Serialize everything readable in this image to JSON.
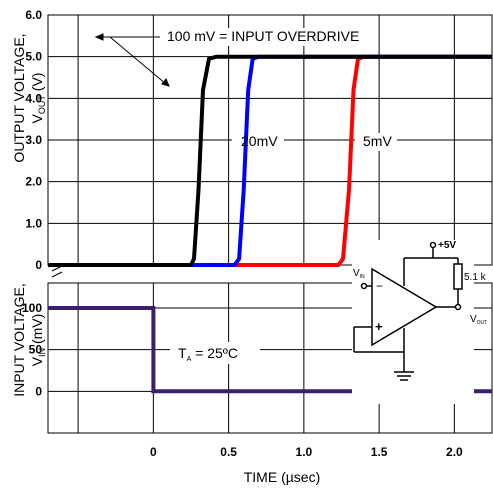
{
  "chart_data": [
    {
      "type": "line",
      "title": "",
      "xlabel": "TIME (µsec)",
      "ylabel": "OUTPUT VOLTAGE, V_OUT (V)",
      "ylabel_main": "OUTPUT VOLTAGE,",
      "ylabel_sym": "V",
      "ylabel_sub": "OUT",
      "ylabel_unit": " (V)",
      "xlim": [
        -0.7,
        2.25
      ],
      "ylim": [
        0,
        6.0
      ],
      "grid": true,
      "y_ticks": [
        "0",
        "1.0",
        "2.0",
        "3.0",
        "4.0",
        "5.0",
        "6.0"
      ],
      "y_tick_values": [
        0,
        1,
        2,
        3,
        4,
        5,
        6
      ],
      "series": [
        {
          "name": "100 mV = INPUT OVERDRIVE",
          "color": "#000000",
          "x": [
            -0.7,
            0.25,
            0.27,
            0.3,
            0.33,
            0.37,
            0.42,
            2.25
          ],
          "y": [
            0.0,
            0.0,
            0.15,
            1.8,
            4.2,
            4.95,
            5.0,
            5.0
          ]
        },
        {
          "name": "20mV",
          "color": "#0000ff",
          "x": [
            0.25,
            0.54,
            0.57,
            0.6,
            0.63,
            0.66,
            0.7,
            2.25
          ],
          "y": [
            0.0,
            0.0,
            0.15,
            1.8,
            4.2,
            4.95,
            5.0,
            5.0
          ]
        },
        {
          "name": "5mV",
          "color": "#ff0000",
          "x": [
            0.54,
            1.23,
            1.26,
            1.3,
            1.33,
            1.36,
            1.4,
            2.25
          ],
          "y": [
            0.0,
            0.0,
            0.15,
            1.8,
            4.2,
            4.95,
            5.0,
            5.0
          ]
        }
      ],
      "annotations": {
        "overdrive_label": "100 mV = INPUT OVERDRIVE",
        "label_20mv": "20mV",
        "label_5mv": "5mV"
      }
    },
    {
      "type": "line",
      "title": "",
      "xlabel": "TIME (µsec)",
      "ylabel": "INPUT VOLTAGE, V_IN (mV)",
      "ylabel_main": "INPUT VOLTAGE,",
      "ylabel_sym": "V",
      "ylabel_sub": "IN",
      "ylabel_unit": " (mV)",
      "xlim": [
        -0.7,
        2.25
      ],
      "ylim": [
        -50,
        100
      ],
      "grid": true,
      "x_ticks": [
        "0",
        "0.5",
        "1.0",
        "1.5",
        "2.0"
      ],
      "x_tick_values": [
        0,
        0.5,
        1.0,
        1.5,
        2.0
      ],
      "y_ticks": [
        "0",
        "50",
        "100"
      ],
      "y_tick_values": [
        0,
        50,
        100
      ],
      "series": [
        {
          "name": "V_IN",
          "color": "#3b1f6e",
          "x": [
            -0.7,
            0.0,
            0.0,
            2.25
          ],
          "y": [
            100,
            100,
            0,
            0
          ]
        }
      ],
      "annotations": {
        "ta_main": "T",
        "ta_sub": "A",
        "ta_rest": " = 25ºC"
      }
    }
  ],
  "circuit": {
    "supply_label": "+5V",
    "resistor_label": "5.1 k",
    "vin_sym": "V",
    "vin_sub": "IN",
    "vout_sym": "V",
    "vout_sub": "OUT",
    "noninv_sign": "+",
    "inv_sign": "−"
  }
}
